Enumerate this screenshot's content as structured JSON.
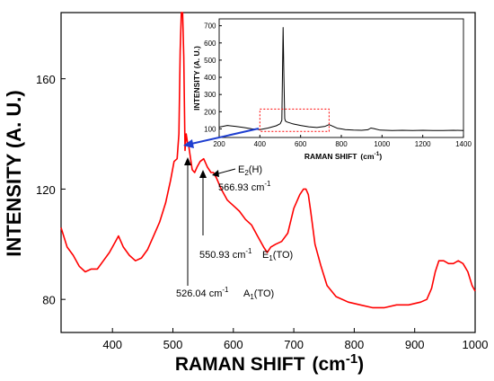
{
  "chart_data": [
    {
      "type": "line",
      "xlabel": "RAMAN SHIFT",
      "xlabel_unit": "(cm",
      "xlabel_unit_exp": "-1",
      "xlabel_unit_close": ")",
      "ylabel": "INTENSITY (A. U.)",
      "xlim": [
        315,
        1000
      ],
      "ylim": [
        68,
        184
      ],
      "xticks": [
        400,
        500,
        600,
        700,
        800,
        900,
        1000
      ],
      "yticks": [
        80,
        120,
        160
      ],
      "line_color": "#ff0000",
      "series": [
        {
          "x": [
            315,
            325,
            335,
            345,
            355,
            365,
            375,
            385,
            395,
            405,
            410,
            418,
            428,
            438,
            448,
            458,
            468,
            478,
            488,
            496,
            502,
            507,
            510,
            512,
            514,
            516,
            518,
            520,
            522,
            524,
            526,
            528,
            532,
            536,
            540,
            545,
            551,
            557,
            563,
            567,
            572,
            580,
            590,
            600,
            610,
            620,
            630,
            640,
            650,
            656,
            662,
            670,
            680,
            690,
            700,
            710,
            716,
            720,
            724,
            728,
            735,
            745,
            755,
            770,
            790,
            810,
            830,
            850,
            870,
            890,
            910,
            920,
            928,
            934,
            940,
            948,
            956,
            964,
            972,
            980,
            988,
            995,
            1000
          ],
          "y": [
            106,
            99,
            96,
            92,
            90,
            91,
            91,
            94,
            97,
            101,
            103,
            99,
            96,
            94,
            95,
            98,
            103,
            108,
            115,
            123,
            130,
            131,
            140,
            170,
            184,
            184,
            168,
            134,
            140,
            137,
            136,
            133,
            127,
            126,
            128,
            130,
            131,
            128,
            126,
            126,
            124,
            120,
            116,
            114,
            112,
            109,
            107,
            103,
            99,
            97,
            99,
            100,
            101,
            104,
            113,
            118,
            120,
            120,
            118,
            112,
            100,
            92,
            85,
            81,
            79,
            78,
            77,
            77,
            78,
            78,
            79,
            80,
            84,
            90,
            94,
            94,
            93,
            93,
            94,
            93,
            90,
            85,
            83
          ]
        }
      ],
      "annotations": [
        {
          "label": "E",
          "sub": "2",
          "suffix": "(H)",
          "value": "566.93 cm",
          "exp": "-1"
        },
        {
          "label": "E",
          "sub": "1",
          "suffix": "(TO)",
          "value": "550.93 cm",
          "exp": "-1"
        },
        {
          "label": "A",
          "sub": "1",
          "suffix": "(TO)",
          "value": "526.04 cm",
          "exp": "-1"
        }
      ]
    },
    {
      "type": "line",
      "inset": true,
      "xlabel": "RAMAN SHIFT",
      "xlabel_unit": "(cm",
      "xlabel_unit_exp": "-1",
      "xlabel_unit_close": ")",
      "ylabel": "INTENSITY (A. U.)",
      "xlim": [
        200,
        1400
      ],
      "ylim": [
        50,
        740
      ],
      "xticks": [
        200,
        400,
        600,
        800,
        1000,
        1200,
        1400
      ],
      "yticks": [
        100,
        200,
        300,
        400,
        500,
        600,
        700
      ],
      "line_color": "#000000",
      "highlight_box": {
        "x": [
          400,
          740
        ],
        "y": [
          85,
          215
        ],
        "color": "#ff0000"
      },
      "series": [
        {
          "x": [
            200,
            240,
            280,
            320,
            360,
            400,
            440,
            480,
            500,
            508,
            514,
            518,
            522,
            526,
            534,
            560,
            600,
            640,
            680,
            720,
            740,
            780,
            820,
            860,
            900,
            930,
            945,
            960,
            990,
            1050,
            1100,
            1150,
            1200,
            1250,
            1300,
            1350,
            1400
          ],
          "y": [
            110,
            120,
            115,
            108,
            100,
            96,
            105,
            118,
            130,
            150,
            690,
            400,
            160,
            145,
            140,
            130,
            120,
            112,
            108,
            115,
            125,
            104,
            96,
            93,
            92,
            95,
            105,
            102,
            93,
            90,
            92,
            91,
            92,
            91,
            90,
            92,
            91
          ]
        }
      ]
    }
  ]
}
